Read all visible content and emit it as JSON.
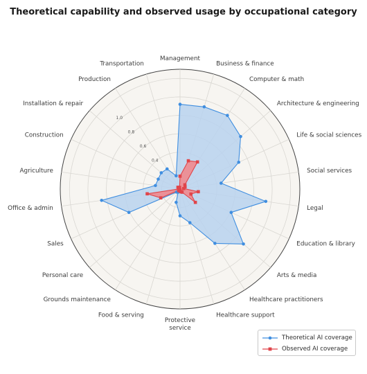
{
  "chart_data": {
    "type": "radar",
    "title": "Theoretical capability and observed usage by occupational category",
    "categories": [
      "Management",
      "Business & finance",
      "Computer & math",
      "Architecture & engineering",
      "Life & social sciences",
      "Social services",
      "Legal",
      "Education & library",
      "Arts & media",
      "Healthcare practitioners",
      "Healthcare support",
      "Protective\nservice",
      "Food & serving",
      "Grounds maintenance",
      "Personal care",
      "Sales",
      "Office & admin",
      "Agriculture",
      "Construction",
      "Installation & repair",
      "Production",
      "Transportation"
    ],
    "radial_ticks": [
      "0.4",
      "0.6",
      "0.8",
      "1.0"
    ],
    "rlim": [
      0,
      1.3
    ],
    "series": [
      {
        "name": "Theoretical AI coverage",
        "color": "#3f8ee0",
        "fill": "#b8d2ee",
        "values": [
          0.92,
          0.93,
          0.95,
          0.87,
          0.7,
          0.45,
          0.94,
          0.61,
          0.91,
          0.7,
          0.38,
          0.29,
          0.15,
          0.04,
          0.05,
          0.61,
          0.86,
          0.27,
          0.26,
          0.27,
          0.26,
          0.15
        ]
      },
      {
        "name": "Observed AI coverage",
        "color": "#e0454a",
        "fill": "#ef8a8e",
        "values": [
          0.14,
          0.32,
          0.35,
          0.07,
          0.06,
          0.04,
          0.2,
          0.13,
          0.22,
          0.04,
          0.03,
          0.01,
          0.02,
          0.02,
          0.02,
          0.23,
          0.36,
          0.01,
          0.01,
          0.03,
          0.01,
          0.02
        ]
      }
    ],
    "legend_position": "bottom-right",
    "grid": true
  }
}
